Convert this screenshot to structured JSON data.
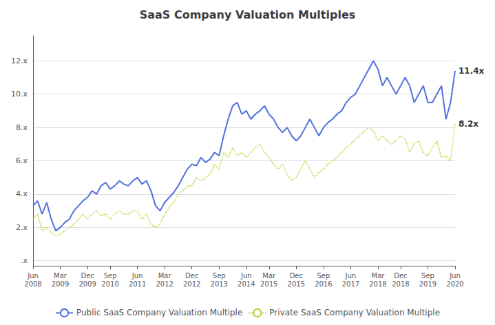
{
  "chart_data": {
    "type": "line",
    "title": "SaaS Company Valuation Multiples",
    "categories": [
      "Jun\n2008",
      null,
      null,
      null,
      null,
      null,
      "Mar\n2009",
      null,
      null,
      null,
      null,
      null,
      "Dec\n2009",
      null,
      null,
      null,
      null,
      "Sep\n2010",
      null,
      null,
      null,
      null,
      null,
      "Jun\n2011",
      null,
      null,
      null,
      null,
      null,
      "Mar\n2012",
      null,
      null,
      null,
      null,
      null,
      "Dec\n2012",
      null,
      null,
      null,
      null,
      null,
      "Sep\n2013",
      null,
      null,
      null,
      null,
      null,
      "Jun\n2014",
      null,
      null,
      null,
      null,
      "Mar\n2015",
      null,
      null,
      null,
      null,
      null,
      "Dec\n2015",
      null,
      null,
      null,
      null,
      null,
      "Sep\n2016",
      null,
      null,
      null,
      null,
      null,
      "Jun\n2017",
      null,
      null,
      null,
      null,
      null,
      "Mar\n2018",
      null,
      null,
      null,
      null,
      "Dec\n2018",
      null,
      null,
      null,
      null,
      null,
      "Sep\n2019",
      null,
      null,
      null,
      null,
      null,
      "Jun\n2020"
    ],
    "series": [
      {
        "name": "Public SaaS Company Valuation Multiple",
        "line_style": "solid",
        "values": [
          3.3,
          3.6,
          2.8,
          3.5,
          2.5,
          1.8,
          2.0,
          2.3,
          2.5,
          3.0,
          3.3,
          3.6,
          3.8,
          4.2,
          4.0,
          4.5,
          4.7,
          4.3,
          4.5,
          4.8,
          4.6,
          4.5,
          4.8,
          5.0,
          4.6,
          4.8,
          4.2,
          3.3,
          3.0,
          3.5,
          3.8,
          4.1,
          4.5,
          5.0,
          5.5,
          5.8,
          5.7,
          6.2,
          5.9,
          6.1,
          6.5,
          6.3,
          7.5,
          8.5,
          9.3,
          9.5,
          8.8,
          9.0,
          8.5,
          8.8,
          9.0,
          9.3,
          8.8,
          8.5,
          8.0,
          7.7,
          8.0,
          7.5,
          7.2,
          7.5,
          8.0,
          8.5,
          8.0,
          7.5,
          8.0,
          8.3,
          8.5,
          8.8,
          9.0,
          9.5,
          9.8,
          10.0,
          10.5,
          11.0,
          11.5,
          12.0,
          11.5,
          10.5,
          11.0,
          10.5,
          10.0,
          10.5,
          11.0,
          10.5,
          9.5,
          10.0,
          10.5,
          9.5,
          9.5,
          10.0,
          10.5,
          8.5,
          9.5,
          11.4
        ]
      },
      {
        "name": "Private SaaS Company Valuation Multiple",
        "line_style": "dotted",
        "values": [
          2.5,
          2.8,
          1.8,
          2.0,
          1.7,
          1.5,
          1.6,
          1.8,
          2.0,
          2.2,
          2.5,
          2.8,
          2.5,
          2.8,
          3.0,
          2.7,
          2.8,
          2.5,
          2.8,
          3.0,
          2.8,
          2.8,
          3.0,
          3.0,
          2.5,
          2.8,
          2.2,
          2.0,
          2.2,
          2.8,
          3.2,
          3.5,
          4.0,
          4.2,
          4.5,
          4.5,
          5.0,
          4.8,
          5.0,
          5.2,
          5.8,
          5.5,
          6.5,
          6.2,
          6.8,
          6.3,
          6.5,
          6.2,
          6.5,
          6.8,
          7.0,
          6.5,
          6.2,
          5.8,
          5.5,
          5.8,
          5.2,
          4.8,
          5.0,
          5.5,
          6.0,
          5.5,
          5.0,
          5.3,
          5.5,
          5.8,
          6.0,
          6.2,
          6.5,
          6.8,
          7.0,
          7.3,
          7.5,
          7.8,
          8.0,
          7.8,
          7.2,
          7.5,
          7.2,
          7.0,
          7.2,
          7.5,
          7.3,
          6.5,
          7.0,
          7.2,
          6.5,
          6.3,
          6.8,
          7.2,
          6.2,
          6.3,
          6.0,
          8.2
        ]
      }
    ],
    "ylim": [
      -0.3,
      13.5
    ],
    "yticks": [
      {
        "value": 0,
        "label": ".x"
      },
      {
        "value": 2,
        "label": "2.x"
      },
      {
        "value": 4,
        "label": "4.x"
      },
      {
        "value": 6,
        "label": "6.x"
      },
      {
        "value": 8,
        "label": "8.x"
      },
      {
        "value": 10,
        "label": "10.x"
      },
      {
        "value": 12,
        "label": "12.x"
      }
    ],
    "grid": true,
    "legend": "bottom",
    "annotations": [
      {
        "text": "11.4x",
        "series": "Public SaaS Company Valuation Multiple"
      },
      {
        "text": "8.2x",
        "series": "Private SaaS Company Valuation Multiple"
      }
    ]
  }
}
